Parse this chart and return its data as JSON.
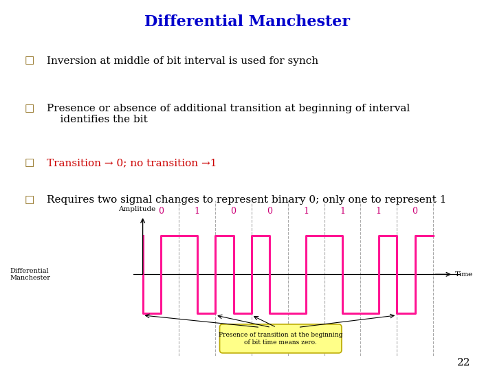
{
  "title": "Differential Manchester",
  "title_color": "#0000CC",
  "title_fontsize": 16,
  "bg_color": "#FFFFFF",
  "bullet_square": "□",
  "bullet_sq_color": "#8B6914",
  "bullets": [
    {
      "text": "Inversion at middle of bit interval is used for synch",
      "color": "#000000"
    },
    {
      "text": "Presence or absence of additional transition at beginning of interval\n    identifies the bit",
      "color": "#000000"
    },
    {
      "text": "Transition → 0; no transition →1",
      "color": "#CC0000"
    },
    {
      "text": "Requires two signal changes to represent binary 0; only one to represent 1",
      "color": "#000000"
    }
  ],
  "bits": [
    "0",
    "1",
    "0",
    "0",
    "1",
    "1",
    "1",
    "0"
  ],
  "bit_color": "#CC0077",
  "signal_color": "#FF1493",
  "signal_linewidth": 2.2,
  "waveform_label": "Differential\nManchester",
  "xlabel": "Time",
  "ylabel": "Amplitude",
  "page_number": "22",
  "note_text": "Presence of transition at the beginning\nof bit time means zero.",
  "note_bg": "#FFFF88",
  "note_border": "#BBAA00",
  "arrow_color": "#000000",
  "dashed_color": "#AAAAAA"
}
